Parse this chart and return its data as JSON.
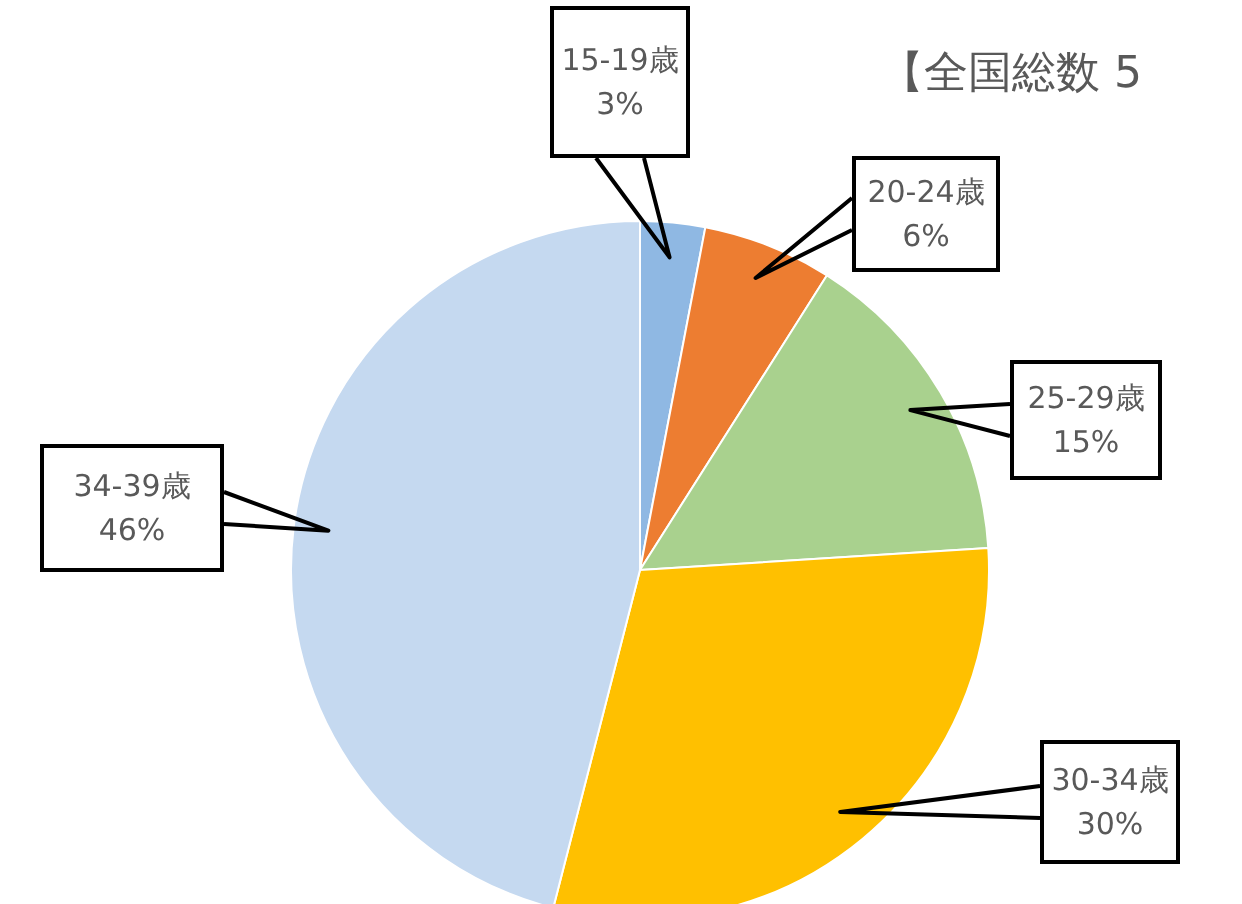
{
  "chart_data": {
    "type": "pie",
    "title": "【全国総数 5",
    "categories": [
      "15-19歳",
      "20-24歳",
      "25-29歳",
      "30-34歳",
      "34-39歳"
    ],
    "values": [
      3,
      6,
      15,
      30,
      46
    ],
    "value_labels": [
      "3%",
      "6%",
      "15%",
      "30%",
      "46%"
    ],
    "colors": [
      "#8fb8e3",
      "#ed7d31",
      "#a9d18e",
      "#ffc000",
      "#c5d9f0"
    ]
  }
}
